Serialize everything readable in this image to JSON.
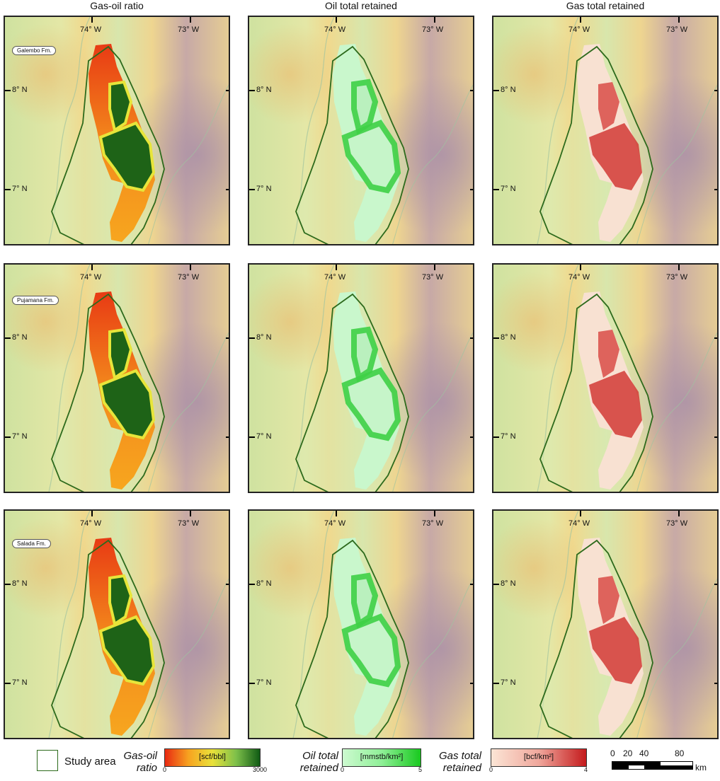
{
  "columns": [
    {
      "title": "Gas-oil ratio"
    },
    {
      "title": "Oil total retained"
    },
    {
      "title": "Gas total retained"
    }
  ],
  "rows": [
    {
      "formation": "Galembo Fm."
    },
    {
      "formation": "Pujamana Fm."
    },
    {
      "formation": "Salada Fm."
    }
  ],
  "map_axes": {
    "lon_labels": [
      "74° W",
      "73° W"
    ],
    "lat_labels": [
      "8° N",
      "7° N"
    ]
  },
  "legend": {
    "study_area_label": "Study area",
    "colorbars": [
      {
        "title_line1": "Gas-oil",
        "title_line2": "ratio",
        "unit": "[scf/bbl]",
        "min": "0",
        "max": "3000",
        "colors": [
          "#e82a12",
          "#f7a320",
          "#e9e13a",
          "#7ec04a",
          "#0f5a14"
        ]
      },
      {
        "title_line1": "Oil total",
        "title_line2": "retained",
        "unit": "[mmstb/km²]",
        "min": "0",
        "max": "5",
        "colors": [
          "#cdfad0",
          "#8ff097",
          "#19c91f"
        ]
      },
      {
        "title_line1": "Gas total",
        "title_line2": "retained",
        "unit": "[bcf/km²]",
        "min": "0",
        "max": "4",
        "colors": [
          "#fbe5d5",
          "#f0a79c",
          "#c41a1c"
        ]
      }
    ],
    "scale_bar": {
      "ticks": [
        "0",
        "20",
        "40",
        "80"
      ],
      "unit": "km"
    }
  },
  "colors": {
    "study_area_outline": "#2d6a1c",
    "basemap_low": "#d4e5a6",
    "basemap_mid": "#ecd98f",
    "basemap_high": "#b29aa6"
  }
}
